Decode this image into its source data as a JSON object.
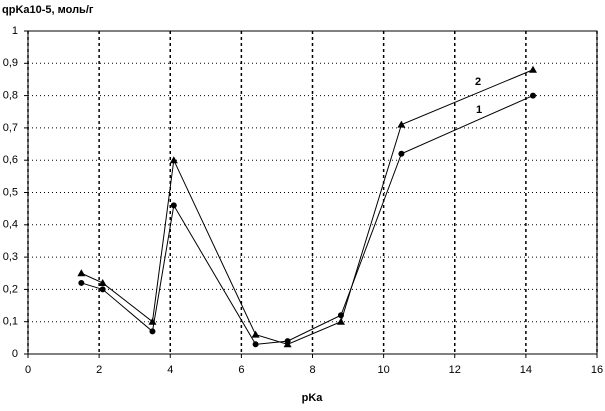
{
  "chart_data": {
    "type": "line",
    "y_label": "qpKa10-5, моль/г",
    "x_label": "pKa",
    "x": [
      1.5,
      2.1,
      3.5,
      4.1,
      6.4,
      7.3,
      8.8,
      10.5,
      14.2
    ],
    "series": [
      {
        "name": "1",
        "color": "#000000",
        "marker": "circle",
        "values": [
          0.22,
          0.2,
          0.07,
          0.46,
          0.03,
          0.04,
          0.12,
          0.62,
          0.8
        ]
      },
      {
        "name": "2",
        "color": "#000000",
        "marker": "triangle",
        "values": [
          0.25,
          0.22,
          0.1,
          0.6,
          0.06,
          0.03,
          0.1,
          0.71,
          0.88
        ]
      }
    ],
    "xlim": [
      0,
      16
    ],
    "xticks": [
      0,
      2,
      4,
      6,
      8,
      10,
      12,
      14,
      16
    ],
    "ylim": [
      0,
      1
    ],
    "yticks": [
      0,
      {
        "value": 0.1,
        "label": "0,1"
      },
      {
        "value": 0.2,
        "label": "0,2"
      },
      {
        "value": 0.3,
        "label": "0,3"
      },
      {
        "value": 0.4,
        "label": "0,4"
      },
      {
        "value": 0.5,
        "label": "0,5"
      },
      {
        "value": 0.6,
        "label": "0,6"
      },
      {
        "value": 0.7,
        "label": "0,7"
      },
      {
        "value": 0.8,
        "label": "0,8"
      },
      {
        "value": 0.9,
        "label": "0,9"
      },
      1
    ],
    "grid": true
  }
}
